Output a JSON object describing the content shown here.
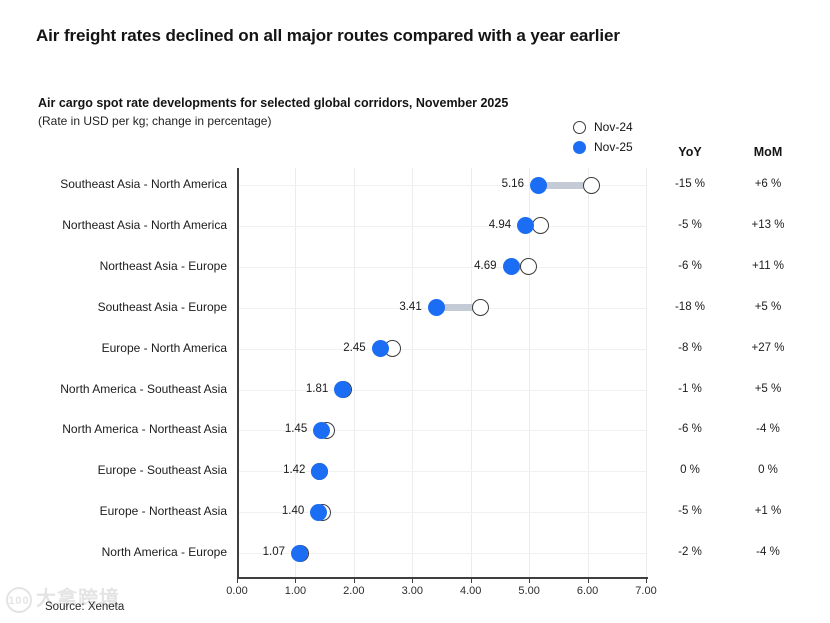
{
  "headline": "Air freight rates declined on all major routes compared with a year earlier",
  "subtitle": "Air cargo spot rate developments for selected global corridors, November 2025",
  "subtitle_note": "(Rate in USD per kg; change in percentage)",
  "legend": [
    {
      "label": "Nov-24",
      "marker": "open-circle"
    },
    {
      "label": "Nov-25",
      "marker": "filled-circle"
    }
  ],
  "columns": {
    "yoy": "YoY",
    "mom": "MoM"
  },
  "source": "Source: Xeneta",
  "watermark": {
    "badge": "100",
    "text": "大拿跨境"
  },
  "colors": {
    "nov25_blue": "#1b6ef3",
    "connector": "#c5cbd6",
    "open_circle_stroke": "#3b3b3b",
    "grid": "#ececec",
    "axis": "#3f3f3f"
  },
  "chart_data": {
    "type": "scatter",
    "subtype": "dumbbell-dot-plot",
    "title": "Air cargo spot rate developments for selected global corridors, November 2025",
    "xlabel": "Rate in USD per kg",
    "xlim": [
      0,
      7
    ],
    "x_ticks": [
      "0.00",
      "1.00",
      "2.00",
      "3.00",
      "4.00",
      "5.00",
      "6.00",
      "7.00"
    ],
    "grid": true,
    "legend_position": "top-right",
    "categories": [
      "Southeast Asia - North America",
      "Northeast Asia - North America",
      "Northeast Asia - Europe",
      "Southeast Asia - Europe",
      "Europe - North America",
      "North America - Southeast Asia",
      "North America - Northeast Asia",
      "Europe - Southeast Asia",
      "Europe - Northeast Asia",
      "North America - Europe"
    ],
    "series": [
      {
        "name": "Nov-25",
        "values": [
          5.16,
          4.94,
          4.69,
          3.41,
          2.45,
          1.81,
          1.45,
          1.42,
          1.4,
          1.07
        ],
        "labels": [
          "5.16",
          "4.94",
          "4.69",
          "3.41",
          "2.45",
          "1.81",
          "1.45",
          "1.42",
          "1.40",
          "1.07"
        ]
      },
      {
        "name": "Nov-24",
        "values": [
          6.07,
          5.2,
          4.99,
          4.16,
          2.66,
          1.83,
          1.54,
          1.42,
          1.47,
          1.09
        ],
        "note": "values estimated from marker positions; not labeled on chart"
      }
    ],
    "yoy": [
      "-15 %",
      "-5 %",
      "-6 %",
      "-18 %",
      "-8 %",
      "-1 %",
      "-6 %",
      "0 %",
      "-5 %",
      "-2 %"
    ],
    "mom": [
      "+6 %",
      "+13 %",
      "+11 %",
      "+5 %",
      "+27 %",
      "+5 %",
      "-4 %",
      "0 %",
      "+1 %",
      "-4 %"
    ]
  }
}
